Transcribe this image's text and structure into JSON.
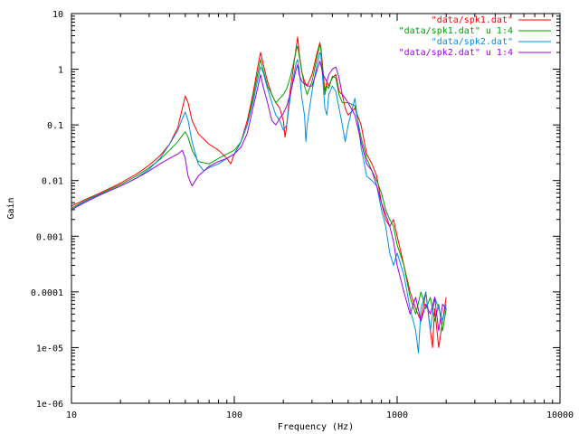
{
  "chart_data": {
    "type": "line",
    "title": "",
    "xlabel": "Frequency (Hz)",
    "ylabel": "Gain",
    "x_scale": "log",
    "y_scale": "log",
    "xlim": [
      10,
      10000
    ],
    "ylim": [
      1e-06,
      10
    ],
    "x_ticks": [
      10,
      100,
      1000,
      10000
    ],
    "x_tick_labels": [
      "10",
      "100",
      "1000",
      "10000"
    ],
    "y_ticks": [
      1e-06,
      1e-05,
      0.0001,
      0.001,
      0.01,
      0.1,
      1,
      10
    ],
    "y_tick_labels": [
      "1e-06",
      "1e-05",
      "0.0001",
      "0.001",
      "0.01",
      "0.1",
      "1",
      "10"
    ],
    "grid": false,
    "legend_position": "top-right",
    "series": [
      {
        "name": "\"data/spk1.dat\"",
        "color": "#ff0000",
        "points": [
          [
            10,
            0.0035
          ],
          [
            12,
            0.0045
          ],
          [
            15,
            0.006
          ],
          [
            20,
            0.009
          ],
          [
            25,
            0.013
          ],
          [
            30,
            0.019
          ],
          [
            35,
            0.028
          ],
          [
            40,
            0.045
          ],
          [
            45,
            0.09
          ],
          [
            48,
            0.2
          ],
          [
            50,
            0.33
          ],
          [
            52,
            0.25
          ],
          [
            55,
            0.12
          ],
          [
            60,
            0.07
          ],
          [
            70,
            0.045
          ],
          [
            80,
            0.035
          ],
          [
            90,
            0.025
          ],
          [
            95,
            0.02
          ],
          [
            100,
            0.03
          ],
          [
            110,
            0.05
          ],
          [
            120,
            0.12
          ],
          [
            130,
            0.35
          ],
          [
            140,
            1.2
          ],
          [
            145,
            2.0
          ],
          [
            150,
            1.3
          ],
          [
            160,
            0.6
          ],
          [
            170,
            0.35
          ],
          [
            180,
            0.25
          ],
          [
            190,
            0.2
          ],
          [
            200,
            0.12
          ],
          [
            205,
            0.06
          ],
          [
            210,
            0.1
          ],
          [
            220,
            0.4
          ],
          [
            230,
            1.0
          ],
          [
            240,
            2.5
          ],
          [
            245,
            3.8
          ],
          [
            250,
            2.0
          ],
          [
            260,
            0.9
          ],
          [
            270,
            0.6
          ],
          [
            280,
            0.5
          ],
          [
            300,
            0.8
          ],
          [
            320,
            1.8
          ],
          [
            335,
            3.0
          ],
          [
            340,
            2.5
          ],
          [
            350,
            1.0
          ],
          [
            360,
            0.4
          ],
          [
            370,
            0.6
          ],
          [
            380,
            0.5
          ],
          [
            400,
            0.7
          ],
          [
            420,
            0.8
          ],
          [
            440,
            0.4
          ],
          [
            460,
            0.35
          ],
          [
            480,
            0.2
          ],
          [
            500,
            0.15
          ],
          [
            550,
            0.2
          ],
          [
            600,
            0.1
          ],
          [
            650,
            0.03
          ],
          [
            700,
            0.02
          ],
          [
            750,
            0.012
          ],
          [
            800,
            0.004
          ],
          [
            850,
            0.002
          ],
          [
            900,
            0.0015
          ],
          [
            950,
            0.002
          ],
          [
            1000,
            0.001
          ],
          [
            1100,
            0.0003
          ],
          [
            1200,
            0.0001
          ],
          [
            1300,
            5e-05
          ],
          [
            1400,
            3e-05
          ],
          [
            1500,
            0.0001
          ],
          [
            1600,
            2e-05
          ],
          [
            1650,
            1e-05
          ],
          [
            1700,
            5e-05
          ],
          [
            1800,
            1e-05
          ],
          [
            1900,
            3e-05
          ],
          [
            2000,
            8e-05
          ]
        ]
      },
      {
        "name": "\"data/spk1.dat\" u 1:4",
        "color": "#00a000",
        "points": [
          [
            10,
            0.0032
          ],
          [
            12,
            0.0043
          ],
          [
            15,
            0.0058
          ],
          [
            20,
            0.0085
          ],
          [
            25,
            0.012
          ],
          [
            30,
            0.017
          ],
          [
            35,
            0.024
          ],
          [
            40,
            0.035
          ],
          [
            45,
            0.05
          ],
          [
            48,
            0.065
          ],
          [
            50,
            0.075
          ],
          [
            52,
            0.06
          ],
          [
            55,
            0.035
          ],
          [
            60,
            0.022
          ],
          [
            70,
            0.02
          ],
          [
            80,
            0.025
          ],
          [
            90,
            0.03
          ],
          [
            100,
            0.035
          ],
          [
            110,
            0.05
          ],
          [
            120,
            0.1
          ],
          [
            130,
            0.3
          ],
          [
            140,
            0.9
          ],
          [
            145,
            1.5
          ],
          [
            150,
            1.0
          ],
          [
            160,
            0.5
          ],
          [
            170,
            0.35
          ],
          [
            180,
            0.25
          ],
          [
            190,
            0.3
          ],
          [
            200,
            0.35
          ],
          [
            210,
            0.45
          ],
          [
            220,
            0.7
          ],
          [
            230,
            1.2
          ],
          [
            240,
            2.2
          ],
          [
            245,
            2.6
          ],
          [
            250,
            1.8
          ],
          [
            260,
            0.9
          ],
          [
            270,
            0.5
          ],
          [
            280,
            0.35
          ],
          [
            300,
            0.6
          ],
          [
            320,
            1.5
          ],
          [
            335,
            2.8
          ],
          [
            340,
            2.3
          ],
          [
            350,
            0.8
          ],
          [
            360,
            0.35
          ],
          [
            370,
            0.5
          ],
          [
            380,
            0.45
          ],
          [
            400,
            0.75
          ],
          [
            420,
            0.7
          ],
          [
            440,
            0.35
          ],
          [
            460,
            0.25
          ],
          [
            480,
            0.25
          ],
          [
            500,
            0.25
          ],
          [
            550,
            0.22
          ],
          [
            600,
            0.06
          ],
          [
            650,
            0.025
          ],
          [
            700,
            0.015
          ],
          [
            750,
            0.01
          ],
          [
            800,
            0.006
          ],
          [
            850,
            0.003
          ],
          [
            900,
            0.002
          ],
          [
            950,
            0.0015
          ],
          [
            1000,
            0.0007
          ],
          [
            1100,
            0.0003
          ],
          [
            1200,
            8e-05
          ],
          [
            1300,
            4e-05
          ],
          [
            1400,
            0.0001
          ],
          [
            1500,
            5e-05
          ],
          [
            1600,
            8e-05
          ],
          [
            1700,
            3e-05
          ],
          [
            1800,
            6e-05
          ],
          [
            1900,
            2e-05
          ],
          [
            2000,
            5e-05
          ]
        ]
      },
      {
        "name": "\"data/spk2.dat\"",
        "color": "#0090e0",
        "points": [
          [
            10,
            0.003
          ],
          [
            12,
            0.0042
          ],
          [
            15,
            0.0056
          ],
          [
            20,
            0.008
          ],
          [
            25,
            0.011
          ],
          [
            30,
            0.016
          ],
          [
            35,
            0.025
          ],
          [
            40,
            0.045
          ],
          [
            45,
            0.08
          ],
          [
            48,
            0.13
          ],
          [
            50,
            0.17
          ],
          [
            52,
            0.12
          ],
          [
            55,
            0.05
          ],
          [
            60,
            0.02
          ],
          [
            65,
            0.015
          ],
          [
            70,
            0.017
          ],
          [
            80,
            0.02
          ],
          [
            90,
            0.025
          ],
          [
            100,
            0.03
          ],
          [
            110,
            0.05
          ],
          [
            120,
            0.1
          ],
          [
            130,
            0.25
          ],
          [
            140,
            0.7
          ],
          [
            145,
            1.1
          ],
          [
            150,
            0.9
          ],
          [
            160,
            0.45
          ],
          [
            170,
            0.25
          ],
          [
            180,
            0.15
          ],
          [
            190,
            0.12
          ],
          [
            200,
            0.08
          ],
          [
            210,
            0.1
          ],
          [
            220,
            0.3
          ],
          [
            230,
            0.7
          ],
          [
            240,
            1.3
          ],
          [
            245,
            1.5
          ],
          [
            250,
            1.0
          ],
          [
            260,
            0.3
          ],
          [
            270,
            0.15
          ],
          [
            275,
            0.05
          ],
          [
            280,
            0.1
          ],
          [
            300,
            0.4
          ],
          [
            320,
            1.1
          ],
          [
            335,
            2.0
          ],
          [
            340,
            1.8
          ],
          [
            350,
            0.6
          ],
          [
            360,
            0.2
          ],
          [
            370,
            0.15
          ],
          [
            380,
            0.35
          ],
          [
            400,
            0.5
          ],
          [
            420,
            0.4
          ],
          [
            440,
            0.2
          ],
          [
            460,
            0.1
          ],
          [
            480,
            0.05
          ],
          [
            500,
            0.1
          ],
          [
            550,
            0.3
          ],
          [
            600,
            0.04
          ],
          [
            650,
            0.012
          ],
          [
            700,
            0.01
          ],
          [
            750,
            0.008
          ],
          [
            800,
            0.003
          ],
          [
            850,
            0.0015
          ],
          [
            900,
            0.0005
          ],
          [
            950,
            0.0003
          ],
          [
            1000,
            0.0005
          ],
          [
            1100,
            0.0002
          ],
          [
            1200,
            5e-05
          ],
          [
            1300,
            2e-05
          ],
          [
            1350,
            8e-06
          ],
          [
            1400,
            5e-05
          ],
          [
            1500,
            0.0001
          ],
          [
            1600,
            2e-05
          ],
          [
            1700,
            8e-05
          ],
          [
            1800,
            5e-05
          ],
          [
            1900,
            3e-05
          ],
          [
            2000,
            6e-05
          ]
        ]
      },
      {
        "name": "\"data/spk2.dat\" u 1:4",
        "color": "#a000e0",
        "points": [
          [
            10,
            0.003
          ],
          [
            12,
            0.004
          ],
          [
            15,
            0.0055
          ],
          [
            20,
            0.008
          ],
          [
            25,
            0.011
          ],
          [
            30,
            0.015
          ],
          [
            35,
            0.02
          ],
          [
            40,
            0.025
          ],
          [
            45,
            0.03
          ],
          [
            48,
            0.035
          ],
          [
            50,
            0.025
          ],
          [
            52,
            0.012
          ],
          [
            55,
            0.008
          ],
          [
            60,
            0.012
          ],
          [
            70,
            0.018
          ],
          [
            80,
            0.022
          ],
          [
            90,
            0.025
          ],
          [
            100,
            0.03
          ],
          [
            110,
            0.04
          ],
          [
            120,
            0.07
          ],
          [
            130,
            0.2
          ],
          [
            140,
            0.5
          ],
          [
            145,
            0.8
          ],
          [
            150,
            0.5
          ],
          [
            160,
            0.25
          ],
          [
            170,
            0.12
          ],
          [
            180,
            0.1
          ],
          [
            190,
            0.13
          ],
          [
            200,
            0.16
          ],
          [
            210,
            0.22
          ],
          [
            220,
            0.35
          ],
          [
            230,
            0.6
          ],
          [
            240,
            1.0
          ],
          [
            245,
            1.2
          ],
          [
            250,
            0.8
          ],
          [
            260,
            0.6
          ],
          [
            270,
            0.55
          ],
          [
            280,
            0.5
          ],
          [
            300,
            0.5
          ],
          [
            320,
            0.9
          ],
          [
            335,
            1.4
          ],
          [
            340,
            1.2
          ],
          [
            350,
            0.8
          ],
          [
            360,
            0.7
          ],
          [
            370,
            0.6
          ],
          [
            380,
            0.8
          ],
          [
            400,
            1.0
          ],
          [
            420,
            1.1
          ],
          [
            440,
            0.7
          ],
          [
            460,
            0.35
          ],
          [
            480,
            0.3
          ],
          [
            500,
            0.25
          ],
          [
            550,
            0.15
          ],
          [
            600,
            0.05
          ],
          [
            650,
            0.02
          ],
          [
            700,
            0.015
          ],
          [
            750,
            0.008
          ],
          [
            800,
            0.004
          ],
          [
            850,
            0.0025
          ],
          [
            900,
            0.0015
          ],
          [
            950,
            0.0008
          ],
          [
            1000,
            0.0003
          ],
          [
            1100,
            0.0001
          ],
          [
            1200,
            4e-05
          ],
          [
            1300,
            8e-05
          ],
          [
            1400,
            3e-05
          ],
          [
            1500,
            6e-05
          ],
          [
            1600,
            4e-05
          ],
          [
            1700,
            8e-05
          ],
          [
            1800,
            2e-05
          ],
          [
            1900,
            6e-05
          ],
          [
            2000,
            5e-05
          ]
        ]
      }
    ]
  }
}
